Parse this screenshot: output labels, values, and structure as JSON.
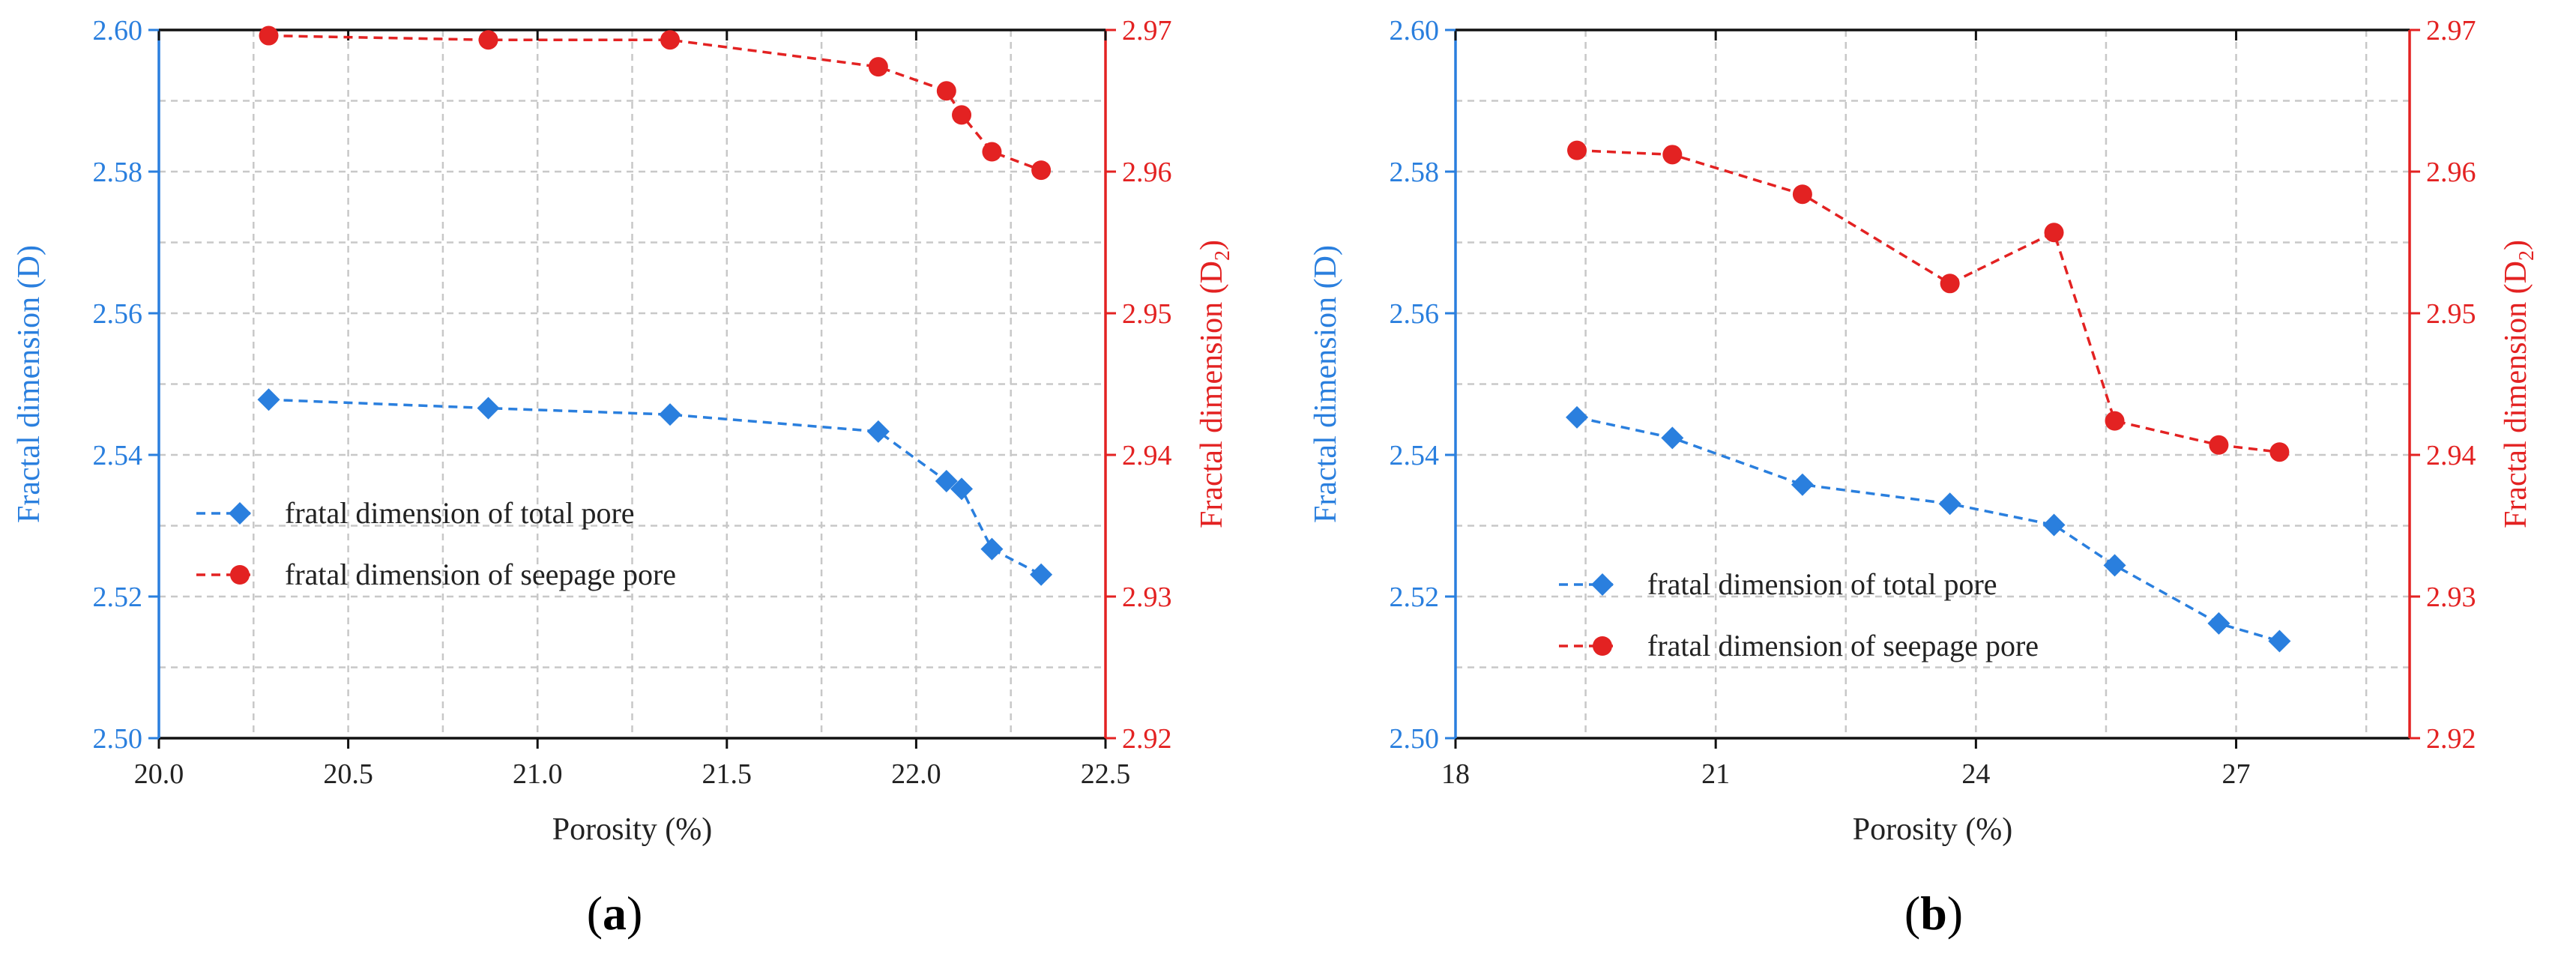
{
  "colors": {
    "left_axis": "#2a7fde",
    "right_axis": "#e32222",
    "frame": "#111111",
    "grid": "#c8c8c8"
  },
  "chart_data": [
    {
      "type": "line",
      "panel_label": "a",
      "xlabel": "Porosity (%)",
      "ylabel_left": "Fractal dimension (D)",
      "ylabel_right": {
        "main": "Fractal dimension (D",
        "sub": "2",
        "end": ")"
      },
      "xlim": [
        20.0,
        22.5
      ],
      "ylim_left": [
        2.5,
        2.6
      ],
      "ylim_right": [
        2.92,
        2.97
      ],
      "xticks": [
        20.0,
        20.5,
        21.0,
        21.5,
        22.0,
        22.5
      ],
      "xtick_labels": [
        "20.0",
        "20.5",
        "21.0",
        "21.5",
        "22.0",
        "22.5"
      ],
      "yticks_left": [
        2.5,
        2.52,
        2.54,
        2.56,
        2.58,
        2.6
      ],
      "ytick_labels_left": [
        "2.50",
        "2.52",
        "2.54",
        "2.56",
        "2.58",
        "2.60"
      ],
      "yticks_right": [
        2.92,
        2.93,
        2.94,
        2.95,
        2.96,
        2.97
      ],
      "ytick_labels_right": [
        "2.92",
        "2.93",
        "2.94",
        "2.95",
        "2.96",
        "2.97"
      ],
      "grid": true,
      "legend_position": "lower-left",
      "series": [
        {
          "name": "fratal dimension of total pore",
          "axis": "left",
          "marker": "diamond",
          "color": "#2a7fde",
          "x": [
            20.29,
            20.87,
            21.35,
            21.9,
            22.08,
            22.12,
            22.2,
            22.33
          ],
          "y": [
            2.5478,
            2.5466,
            2.5457,
            2.5433,
            2.5363,
            2.5352,
            2.5267,
            2.5231
          ]
        },
        {
          "name": "fratal dimension of seepage pore",
          "axis": "right",
          "marker": "circle",
          "color": "#e32222",
          "x": [
            20.29,
            20.87,
            21.35,
            21.9,
            22.08,
            22.12,
            22.2,
            22.33
          ],
          "y": [
            2.9696,
            2.9693,
            2.9693,
            2.9674,
            2.9657,
            2.964,
            2.9614,
            2.9601
          ]
        }
      ]
    },
    {
      "type": "line",
      "panel_label": "b",
      "xlabel": "Porosity (%)",
      "ylabel_left": "Fractal dimension (D)",
      "ylabel_right": {
        "main": "Fractal dimension (D",
        "sub": "2",
        "end": ")"
      },
      "xlim": [
        18,
        29
      ],
      "ylim_left": [
        2.5,
        2.6
      ],
      "ylim_right": [
        2.92,
        2.97
      ],
      "xticks": [
        18,
        21,
        24,
        27
      ],
      "xtick_labels": [
        "18",
        "21",
        "24",
        "27"
      ],
      "yticks_left": [
        2.5,
        2.52,
        2.54,
        2.56,
        2.58,
        2.6
      ],
      "ytick_labels_left": [
        "2.50",
        "2.52",
        "2.54",
        "2.56",
        "2.58",
        "2.60"
      ],
      "yticks_right": [
        2.92,
        2.93,
        2.94,
        2.95,
        2.96,
        2.97
      ],
      "ytick_labels_right": [
        "2.92",
        "2.93",
        "2.94",
        "2.95",
        "2.96",
        "2.97"
      ],
      "grid": true,
      "legend_position": "lower-center",
      "series": [
        {
          "name": "fratal dimension of total pore",
          "axis": "left",
          "marker": "diamond",
          "color": "#2a7fde",
          "x": [
            19.4,
            20.5,
            22.0,
            23.7,
            24.9,
            25.6,
            26.8,
            27.5
          ],
          "y": [
            2.5453,
            2.5424,
            2.5358,
            2.5331,
            2.5301,
            2.5244,
            2.5162,
            2.5137
          ]
        },
        {
          "name": "fratal dimension of seepage pore",
          "axis": "right",
          "marker": "circle",
          "color": "#e32222",
          "x": [
            19.4,
            20.5,
            22.0,
            23.7,
            24.9,
            25.6,
            26.8,
            27.5
          ],
          "y": [
            2.9615,
            2.9612,
            2.9584,
            2.9521,
            2.9557,
            2.9424,
            2.9407,
            2.9402
          ]
        }
      ]
    }
  ]
}
